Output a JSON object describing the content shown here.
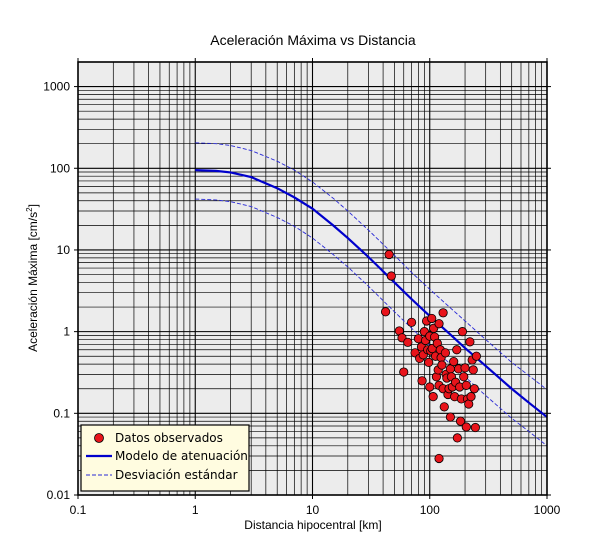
{
  "chart_data": {
    "type": "scatter",
    "title": "Aceleración Máxima vs Distancia",
    "xlabel": "Distancia hipocentral [km]",
    "ylabel_main": "Aceleración Máxima [cm/s",
    "ylabel_sup": "2",
    "ylabel_end": "]",
    "x_scale": "log",
    "y_scale": "log",
    "xlim": [
      0.1,
      1000
    ],
    "ylim": [
      0.01,
      2000
    ],
    "x_ticks": [
      {
        "value": 0.1,
        "label": "0.1"
      },
      {
        "value": 1,
        "label": "1"
      },
      {
        "value": 10,
        "label": "10"
      },
      {
        "value": 100,
        "label": "100"
      },
      {
        "value": 1000,
        "label": "1000"
      }
    ],
    "y_ticks": [
      {
        "value": 0.01,
        "label": "0.01"
      },
      {
        "value": 0.1,
        "label": "0.1"
      },
      {
        "value": 1,
        "label": "1"
      },
      {
        "value": 10,
        "label": "10"
      },
      {
        "value": 100,
        "label": "100"
      },
      {
        "value": 1000,
        "label": "1000"
      }
    ],
    "grid": true,
    "legend_position": "bottom-left",
    "colors": {
      "plot_background": "#ececec",
      "grid": "#000000",
      "points": "#e8141b",
      "model": "#0000cc",
      "deviation": "#2a2ad6",
      "legend_background": "#fffce0"
    },
    "legend": [
      {
        "label": "Datos observados",
        "style": "marker"
      },
      {
        "label": "Modelo de atenuación",
        "style": "solid"
      },
      {
        "label": "Desviación estándar",
        "style": "dashed"
      }
    ],
    "series": [
      {
        "name": "Datos observados",
        "kind": "points",
        "points": [
          [
            45,
            8.8
          ],
          [
            47,
            4.8
          ],
          [
            42,
            1.75
          ],
          [
            55,
            1.02
          ],
          [
            58,
            0.84
          ],
          [
            60,
            0.32
          ],
          [
            65,
            0.74
          ],
          [
            70,
            1.3
          ],
          [
            75,
            0.55
          ],
          [
            80,
            0.82
          ],
          [
            82,
            0.47
          ],
          [
            85,
            0.65
          ],
          [
            86,
            0.25
          ],
          [
            88,
            0.52
          ],
          [
            90,
            1.0
          ],
          [
            92,
            0.78
          ],
          [
            94,
            1.35
          ],
          [
            96,
            0.6
          ],
          [
            98,
            0.42
          ],
          [
            100,
            0.88
          ],
          [
            100,
            0.21
          ],
          [
            102,
            0.58
          ],
          [
            104,
            1.45
          ],
          [
            105,
            0.62
          ],
          [
            107,
            0.16
          ],
          [
            108,
            1.1
          ],
          [
            110,
            0.86
          ],
          [
            112,
            0.5
          ],
          [
            114,
            0.28
          ],
          [
            116,
            0.72
          ],
          [
            118,
            0.34
          ],
          [
            120,
            1.25
          ],
          [
            120,
            0.22
          ],
          [
            123,
            0.6
          ],
          [
            125,
            0.48
          ],
          [
            127,
            0.39
          ],
          [
            130,
            1.7
          ],
          [
            130,
            0.2
          ],
          [
            133,
            0.12
          ],
          [
            136,
            0.55
          ],
          [
            138,
            0.3
          ],
          [
            140,
            0.27
          ],
          [
            143,
            0.17
          ],
          [
            146,
            0.2
          ],
          [
            150,
            0.35
          ],
          [
            150,
            0.09
          ],
          [
            153,
            0.28
          ],
          [
            156,
            0.21
          ],
          [
            160,
            0.43
          ],
          [
            163,
            0.16
          ],
          [
            166,
            0.24
          ],
          [
            170,
            0.6
          ],
          [
            172,
            0.05
          ],
          [
            176,
            0.35
          ],
          [
            180,
            0.21
          ],
          [
            183,
            0.08
          ],
          [
            186,
            0.15
          ],
          [
            190,
            1.0
          ],
          [
            195,
            0.28
          ],
          [
            200,
            0.36
          ],
          [
            205,
            0.22
          ],
          [
            210,
            0.15
          ],
          [
            215,
            0.13
          ],
          [
            220,
            0.75
          ],
          [
            225,
            0.16
          ],
          [
            230,
            0.45
          ],
          [
            235,
            0.34
          ],
          [
            240,
            0.2
          ],
          [
            245,
            0.067
          ],
          [
            120,
            0.028
          ],
          [
            205,
            0.068
          ],
          [
            250,
            0.5
          ]
        ]
      },
      {
        "name": "Modelo de atenuación",
        "kind": "line",
        "x": [
          1,
          1.5,
          2,
          3,
          5,
          7,
          10,
          15,
          20,
          30,
          50,
          70,
          100,
          150,
          200,
          300,
          500,
          700,
          1000
        ],
        "y": [
          95,
          93,
          89,
          78,
          57,
          44,
          32,
          20,
          14,
          8.2,
          4.0,
          2.5,
          1.55,
          0.92,
          0.63,
          0.38,
          0.2,
          0.135,
          0.09
        ]
      },
      {
        "name": "Desviación estándar superior",
        "kind": "line",
        "x": [
          1,
          1.5,
          2,
          3,
          5,
          7,
          10,
          15,
          20,
          30,
          50,
          70,
          100,
          150,
          200,
          300,
          500,
          700,
          1000
        ],
        "y": [
          205,
          200,
          190,
          165,
          122,
          95,
          68,
          43,
          30,
          17.5,
          8.6,
          5.3,
          3.3,
          1.95,
          1.35,
          0.8,
          0.42,
          0.29,
          0.195
        ]
      },
      {
        "name": "Desviación estándar inferior",
        "kind": "line",
        "x": [
          1,
          1.5,
          2,
          3,
          5,
          7,
          10,
          15,
          20,
          30,
          50,
          70,
          100,
          150,
          200,
          300,
          500,
          700,
          1000
        ],
        "y": [
          42,
          41,
          39,
          34,
          25,
          19.5,
          14,
          8.8,
          6.2,
          3.6,
          1.75,
          1.1,
          0.68,
          0.4,
          0.28,
          0.165,
          0.087,
          0.06,
          0.04
        ]
      }
    ]
  }
}
